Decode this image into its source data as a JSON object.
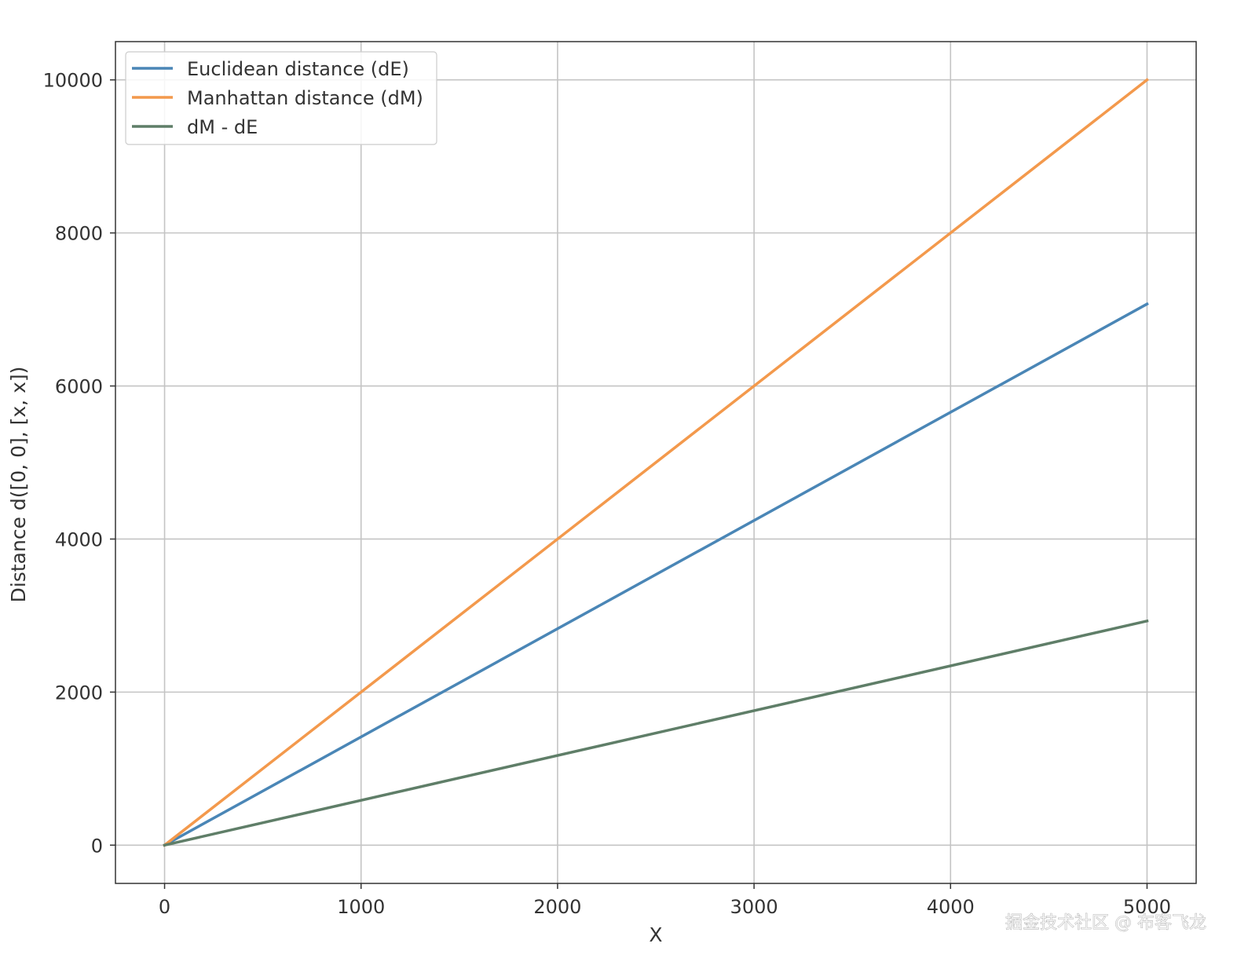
{
  "chart_data": {
    "type": "line",
    "xlabel": "X",
    "ylabel": "Distance d([0, 0], [x, x])",
    "xlim": [
      -250,
      5250
    ],
    "ylim": [
      -500,
      10500
    ],
    "x_ticks": [
      0,
      1000,
      2000,
      3000,
      4000,
      5000
    ],
    "x_tick_labels": [
      "0",
      "1000",
      "2000",
      "3000",
      "4000",
      "5000"
    ],
    "y_ticks": [
      0,
      2000,
      4000,
      6000,
      8000,
      10000
    ],
    "y_tick_labels": [
      "0",
      "2000",
      "4000",
      "6000",
      "8000",
      "10000"
    ],
    "grid": true,
    "legend_position": "top-left",
    "x": [
      0,
      5000
    ],
    "series": [
      {
        "name": "Euclidean distance (dE)",
        "color": "#4a86b6",
        "values": [
          0,
          7071
        ]
      },
      {
        "name": "Manhattan distance (dM)",
        "color": "#f3994c",
        "values": [
          0,
          10000
        ]
      },
      {
        "name": "dM - dE",
        "color": "#5f7e68",
        "values": [
          0,
          2929
        ]
      }
    ]
  },
  "watermark": "掘金技术社区 @ 布客飞龙"
}
